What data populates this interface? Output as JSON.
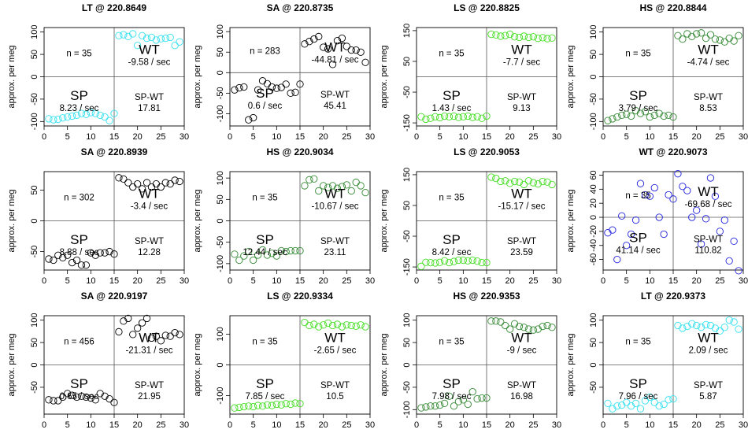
{
  "chart_data": [
    {
      "title": "LT @ 220.8649",
      "type": "scatter",
      "ylabel": "approx. per meg",
      "xlim": [
        0,
        30
      ],
      "ylim": [
        -110,
        110
      ],
      "xticks": [
        0,
        5,
        10,
        15,
        20,
        25,
        30
      ],
      "yticks": [
        -100,
        -50,
        0,
        50,
        100
      ],
      "color": "#33e0f0",
      "x": [
        1,
        2,
        3,
        4,
        5,
        6,
        7,
        8,
        9,
        10,
        11,
        12,
        13,
        14,
        15,
        16,
        17,
        18,
        19,
        20,
        21,
        22,
        23,
        24,
        25,
        26,
        27,
        28,
        29
      ],
      "y": [
        -94,
        -96,
        -95,
        -92,
        -90,
        -88,
        -86,
        -82,
        -84,
        -80,
        -82,
        -86,
        -90,
        -98,
        -82,
        92,
        94,
        90,
        96,
        70,
        92,
        86,
        88,
        82,
        85,
        86,
        88,
        70,
        78
      ],
      "n_label": "n = 35",
      "wt_label": "WT",
      "wt_rate": "-9.58 / sec",
      "sp_label": "SP",
      "sp_rate": "8.23 / sec",
      "diff_label": "SP-WT",
      "diff_value": "17.81"
    },
    {
      "title": "SA @ 220.8735",
      "type": "scatter",
      "ylabel": "approx. per meg",
      "xlim": [
        0,
        30
      ],
      "ylim": [
        -130,
        110
      ],
      "xticks": [
        0,
        5,
        10,
        15,
        20,
        25,
        30
      ],
      "yticks": [
        -100,
        -50,
        0,
        50,
        100
      ],
      "color": "#000000",
      "x": [
        1,
        2,
        3,
        4,
        5,
        6,
        7,
        8,
        9,
        10,
        11,
        12,
        13,
        14,
        15,
        16,
        17,
        18,
        19,
        20,
        21,
        22,
        23,
        24,
        25,
        26,
        27,
        28,
        29
      ],
      "y": [
        -42,
        -37,
        -35,
        -115,
        -110,
        -42,
        -20,
        -27,
        -35,
        -38,
        -36,
        -28,
        -50,
        -48,
        -28,
        70,
        76,
        82,
        88,
        62,
        58,
        20,
        78,
        84,
        64,
        55,
        55,
        50,
        25
      ],
      "n_label": "n = 283",
      "wt_label": "WT",
      "wt_rate": "-44.81 / sec",
      "sp_label": "SP",
      "sp_rate": "0.6 / sec",
      "diff_label": "SP-WT",
      "diff_value": "45.41"
    },
    {
      "title": "LS @ 220.8825",
      "type": "scatter",
      "ylabel": "approx. per meg",
      "xlim": [
        0,
        30
      ],
      "ylim": [
        -160,
        160
      ],
      "xticks": [
        0,
        5,
        10,
        15,
        20,
        25,
        30
      ],
      "yticks": [
        -150,
        -50,
        50,
        150
      ],
      "color": "#44dd22",
      "x": [
        1,
        2,
        3,
        4,
        5,
        6,
        7,
        8,
        9,
        10,
        11,
        12,
        13,
        14,
        15,
        16,
        17,
        18,
        19,
        20,
        21,
        22,
        23,
        24,
        25,
        26,
        27,
        28,
        29
      ],
      "y": [
        -130,
        -138,
        -135,
        -130,
        -133,
        -128,
        -130,
        -128,
        -132,
        -130,
        -128,
        -132,
        -130,
        -135,
        -128,
        138,
        136,
        132,
        134,
        138,
        130,
        128,
        132,
        128,
        130,
        125,
        127,
        124,
        126
      ],
      "n_label": "n = 35",
      "wt_label": "WT",
      "wt_rate": "-7.7 / sec",
      "sp_label": "SP",
      "sp_rate": "1.43 / sec",
      "diff_label": "SP-WT",
      "diff_value": "9.13"
    },
    {
      "title": "HS @ 220.8844",
      "type": "scatter",
      "ylabel": "approx. per meg",
      "xlim": [
        0,
        30
      ],
      "ylim": [
        -110,
        110
      ],
      "xticks": [
        0,
        5,
        10,
        15,
        20,
        25,
        30
      ],
      "yticks": [
        -100,
        -50,
        0,
        50,
        100
      ],
      "color": "#338833",
      "x": [
        1,
        2,
        3,
        4,
        5,
        6,
        7,
        8,
        9,
        10,
        11,
        12,
        13,
        14,
        15,
        16,
        17,
        18,
        19,
        20,
        21,
        22,
        23,
        24,
        25,
        26,
        27,
        28,
        29
      ],
      "y": [
        -98,
        -94,
        -90,
        -86,
        -84,
        -88,
        -76,
        -82,
        -78,
        -90,
        -86,
        -82,
        -88,
        -86,
        -90,
        92,
        84,
        96,
        90,
        96,
        98,
        86,
        94,
        84,
        82,
        78,
        86,
        80,
        92
      ],
      "n_label": "n = 35",
      "wt_label": "WT",
      "wt_rate": "-4.74 / sec",
      "sp_label": "SP",
      "sp_rate": "3.79 / sec",
      "diff_label": "SP-WT",
      "diff_value": "8.53"
    },
    {
      "title": "SA @ 220.8939",
      "type": "scatter",
      "ylabel": "approx. per meg",
      "xlim": [
        0,
        30
      ],
      "ylim": [
        -80,
        80
      ],
      "xticks": [
        0,
        5,
        10,
        15,
        20,
        25,
        30
      ],
      "yticks": [
        -50,
        0,
        50
      ],
      "color": "#000000",
      "x": [
        1,
        2,
        3,
        4,
        5,
        6,
        7,
        8,
        9,
        10,
        11,
        12,
        13,
        14,
        15,
        16,
        17,
        18,
        19,
        20,
        21,
        22,
        23,
        24,
        25,
        26,
        27,
        28,
        29
      ],
      "y": [
        -62,
        -64,
        -56,
        -60,
        -56,
        -68,
        -64,
        -72,
        -72,
        -52,
        -56,
        -52,
        -52,
        -50,
        -54,
        70,
        68,
        62,
        55,
        60,
        52,
        62,
        55,
        60,
        55,
        62,
        60,
        66,
        64
      ],
      "n_label": "n = 302",
      "wt_label": "WT",
      "wt_rate": "-3.4 / sec",
      "sp_label": "SP",
      "sp_rate": "8.88 / sec",
      "diff_label": "SP-WT",
      "diff_value": "12.28"
    },
    {
      "title": "HS @ 220.9034",
      "type": "scatter",
      "ylabel": "approx. per meg",
      "xlim": [
        0,
        30
      ],
      "ylim": [
        -115,
        115
      ],
      "xticks": [
        0,
        5,
        10,
        15,
        20,
        25,
        30
      ],
      "yticks": [
        -100,
        -50,
        0,
        50,
        100
      ],
      "color": "#338833",
      "x": [
        1,
        2,
        3,
        4,
        5,
        6,
        7,
        8,
        9,
        10,
        11,
        12,
        13,
        14,
        15,
        16,
        17,
        18,
        19,
        20,
        21,
        22,
        23,
        24,
        25,
        26,
        27,
        28,
        29
      ],
      "y": [
        -78,
        -92,
        -82,
        -72,
        -92,
        -80,
        -68,
        -80,
        -76,
        -82,
        -70,
        -72,
        -70,
        -70,
        -70,
        82,
        96,
        98,
        70,
        82,
        78,
        82,
        76,
        80,
        84,
        70,
        90,
        82,
        66
      ],
      "n_label": "n = 35",
      "wt_label": "WT",
      "wt_rate": "-10.67 / sec",
      "sp_label": "SP",
      "sp_rate": "12.44 / sec",
      "diff_label": "SP-WT",
      "diff_value": "23.11"
    },
    {
      "title": "LS @ 220.9053",
      "type": "scatter",
      "ylabel": "approx. per meg",
      "xlim": [
        0,
        30
      ],
      "ylim": [
        -160,
        160
      ],
      "xticks": [
        0,
        5,
        10,
        15,
        20,
        25,
        30
      ],
      "yticks": [
        -150,
        -50,
        50,
        150
      ],
      "color": "#44dd22",
      "x": [
        1,
        2,
        3,
        4,
        5,
        6,
        7,
        8,
        9,
        10,
        11,
        12,
        13,
        14,
        15,
        16,
        17,
        18,
        19,
        20,
        21,
        22,
        23,
        24,
        25,
        26,
        27,
        28,
        29
      ],
      "y": [
        -148,
        -135,
        -136,
        -137,
        -135,
        -130,
        -136,
        -132,
        -128,
        -128,
        -130,
        -128,
        -131,
        -136,
        -136,
        142,
        138,
        128,
        130,
        122,
        128,
        126,
        118,
        130,
        124,
        120,
        128,
        126,
        118
      ],
      "n_label": "n = 35",
      "wt_label": "WT",
      "wt_rate": "-15.17 / sec",
      "sp_label": "SP",
      "sp_rate": "8.42 / sec",
      "diff_label": "SP-WT",
      "diff_value": "23.59"
    },
    {
      "title": "WT @ 220.9073",
      "type": "scatter",
      "ylabel": "approx. per meg",
      "xlim": [
        0,
        30
      ],
      "ylim": [
        -75,
        65
      ],
      "xticks": [
        0,
        5,
        10,
        15,
        20,
        25,
        30
      ],
      "yticks": [
        -60,
        -40,
        -20,
        0,
        20,
        40,
        60
      ],
      "color": "#2222dd",
      "x": [
        1,
        2,
        3,
        4,
        5,
        6,
        7,
        8,
        9,
        10,
        11,
        12,
        13,
        14,
        15,
        16,
        17,
        18,
        19,
        20,
        21,
        22,
        23,
        24,
        25,
        26,
        27,
        28,
        29
      ],
      "y": [
        -22,
        -18,
        -60,
        2,
        -40,
        -24,
        -4,
        48,
        32,
        30,
        42,
        0,
        -24,
        32,
        26,
        62,
        44,
        38,
        0,
        10,
        -38,
        -2,
        56,
        30,
        -20,
        -4,
        -62,
        -34,
        -76
      ],
      "n_label": "n = 35",
      "wt_label": "WT",
      "wt_rate": "-69.68 / sec",
      "sp_label": "SP",
      "sp_rate": "41.14 / sec",
      "diff_label": "SP-WT",
      "diff_value": "110.82"
    },
    {
      "title": "SA @ 220.9197",
      "type": "scatter",
      "ylabel": "approx. per meg",
      "xlim": [
        0,
        30
      ],
      "ylim": [
        -110,
        110
      ],
      "xticks": [
        0,
        5,
        10,
        15,
        20,
        25,
        30
      ],
      "yticks": [
        -50,
        0,
        50,
        100
      ],
      "color": "#000000",
      "x": [
        1,
        2,
        3,
        4,
        5,
        6,
        7,
        8,
        9,
        10,
        11,
        12,
        13,
        14,
        15,
        16,
        17,
        18,
        19,
        20,
        21,
        22,
        23,
        24,
        25,
        26,
        27,
        28,
        29
      ],
      "y": [
        -78,
        -80,
        -80,
        -72,
        -64,
        -68,
        -72,
        -70,
        -72,
        -74,
        -78,
        -64,
        -70,
        -76,
        -84,
        74,
        98,
        104,
        68,
        82,
        94,
        104,
        60,
        64,
        54,
        66,
        64,
        72,
        68
      ],
      "n_label": "n = 456",
      "wt_label": "WT",
      "wt_rate": "-21.31 / sec",
      "sp_label": "SP",
      "sp_rate": "0.65 / sec",
      "diff_label": "SP-WT",
      "diff_value": "21.95"
    },
    {
      "title": "LS @ 220.9334",
      "type": "scatter",
      "ylabel": "approx. per meg",
      "xlim": [
        0,
        30
      ],
      "ylim": [
        -160,
        160
      ],
      "xticks": [
        0,
        5,
        10,
        15,
        20,
        25,
        30
      ],
      "yticks": [
        -100,
        0,
        100
      ],
      "color": "#44dd22",
      "x": [
        1,
        2,
        3,
        4,
        5,
        6,
        7,
        8,
        9,
        10,
        11,
        12,
        13,
        14,
        15,
        16,
        17,
        18,
        19,
        20,
        21,
        22,
        23,
        24,
        25,
        26,
        27,
        28,
        29
      ],
      "y": [
        -140,
        -138,
        -136,
        -134,
        -136,
        -132,
        -134,
        -130,
        -132,
        -128,
        -130,
        -126,
        -128,
        -124,
        -126,
        138,
        128,
        132,
        124,
        130,
        136,
        128,
        132,
        124,
        130,
        128,
        126,
        130,
        124
      ],
      "n_label": "n = 35",
      "wt_label": "WT",
      "wt_rate": "-2.65 / sec",
      "sp_label": "SP",
      "sp_rate": "7.85 / sec",
      "diff_label": "SP-WT",
      "diff_value": "10.5"
    },
    {
      "title": "HS @ 220.9353",
      "type": "scatter",
      "ylabel": "approx. per meg",
      "xlim": [
        0,
        30
      ],
      "ylim": [
        -110,
        110
      ],
      "xticks": [
        0,
        5,
        10,
        15,
        20,
        25,
        30
      ],
      "yticks": [
        -100,
        -50,
        0,
        50,
        100
      ],
      "color": "#338833",
      "x": [
        1,
        2,
        3,
        4,
        5,
        6,
        7,
        8,
        9,
        10,
        11,
        12,
        13,
        14,
        15,
        16,
        17,
        18,
        19,
        20,
        21,
        22,
        23,
        24,
        25,
        26,
        27,
        28,
        29
      ],
      "y": [
        -96,
        -94,
        -92,
        -92,
        -90,
        -86,
        -70,
        -92,
        -82,
        -78,
        -88,
        -60,
        -76,
        -74,
        -74,
        98,
        98,
        96,
        88,
        80,
        92,
        86,
        84,
        80,
        78,
        80,
        86,
        88,
        84
      ],
      "n_label": "n = 35",
      "wt_label": "WT",
      "wt_rate": "-9 / sec",
      "sp_label": "SP",
      "sp_rate": "7.98 / sec",
      "diff_label": "SP-WT",
      "diff_value": "16.98"
    },
    {
      "title": "LT @ 220.9373",
      "type": "scatter",
      "ylabel": "approx. per meg",
      "xlim": [
        0,
        30
      ],
      "ylim": [
        -110,
        110
      ],
      "xticks": [
        0,
        5,
        10,
        15,
        20,
        25,
        30
      ],
      "yticks": [
        -50,
        0,
        50,
        100
      ],
      "color": "#33e0f0",
      "x": [
        1,
        2,
        3,
        4,
        5,
        6,
        7,
        8,
        9,
        10,
        11,
        12,
        13,
        14,
        15,
        16,
        17,
        18,
        19,
        20,
        21,
        22,
        23,
        24,
        25,
        26,
        27,
        28,
        29
      ],
      "y": [
        -86,
        -98,
        -92,
        -90,
        -84,
        -92,
        -86,
        -98,
        -80,
        -72,
        -84,
        -92,
        -88,
        -78,
        -76,
        88,
        82,
        86,
        92,
        88,
        84,
        90,
        88,
        82,
        76,
        84,
        100,
        96,
        80
      ],
      "n_label": "n = 35",
      "wt_label": "WT",
      "wt_rate": "2.09 / sec",
      "sp_label": "SP",
      "sp_rate": "7.96 / sec",
      "diff_label": "SP-WT",
      "diff_value": "5.87"
    }
  ]
}
